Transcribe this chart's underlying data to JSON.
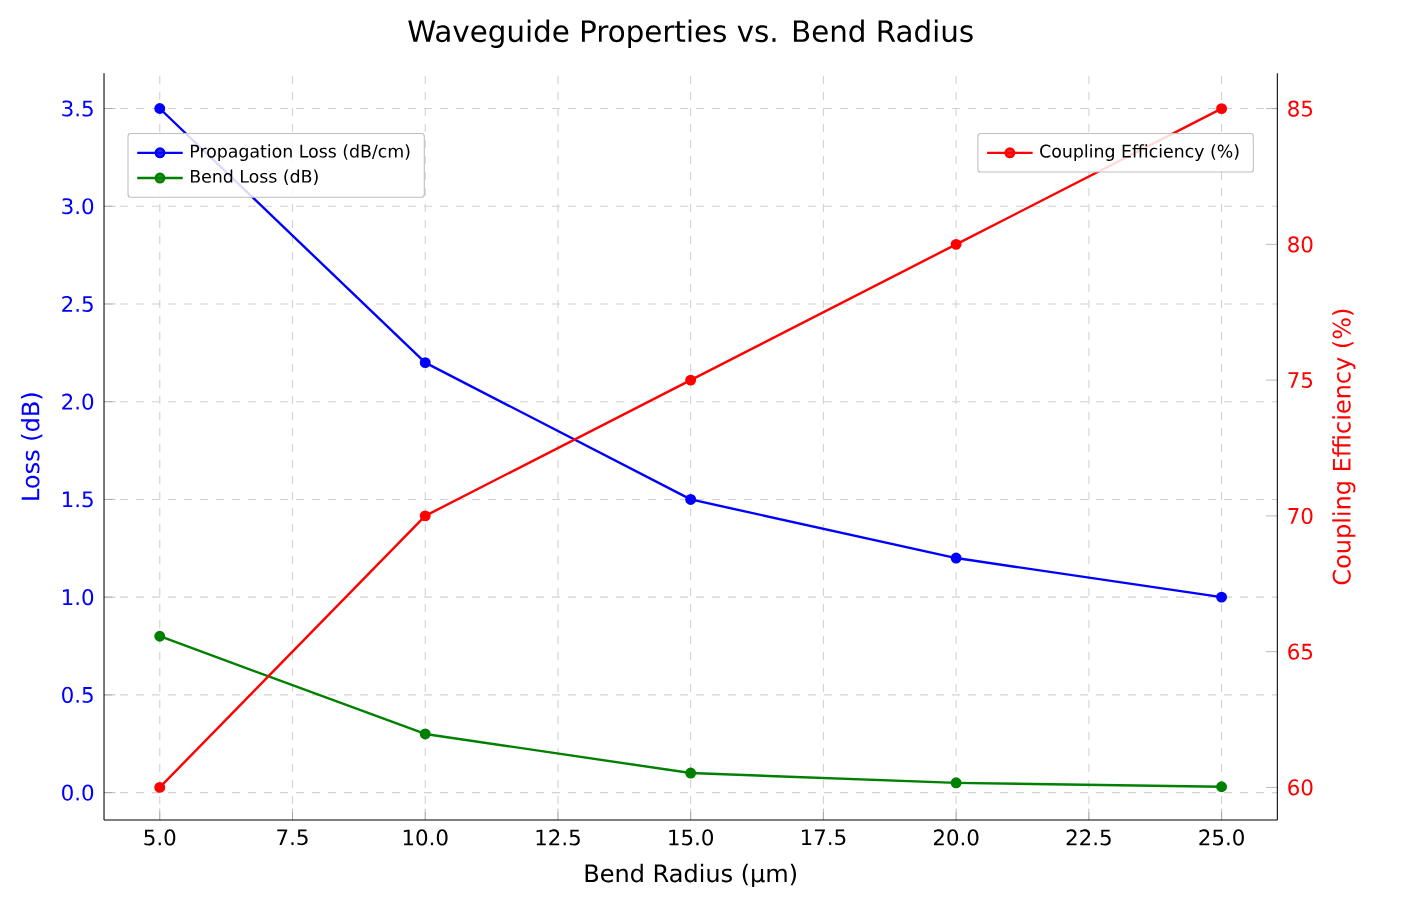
{
  "chart_data": {
    "type": "line",
    "title": "Waveguide Properties vs. Bend Radius",
    "xlabel": "Bend Radius (µm)",
    "ylabel": "Loss (dB)",
    "y2label": "Coupling Efficiency (%)",
    "x": [
      5,
      10,
      15,
      20,
      25
    ],
    "series": [
      {
        "name": "Propagation Loss (dB/cm)",
        "color": "#0000ff",
        "values": [
          3.5,
          2.2,
          1.5,
          1.2,
          1.0
        ]
      },
      {
        "name": "Bend Loss (dB)",
        "color": "#008000",
        "values": [
          0.8,
          0.3,
          0.1,
          0.05,
          0.03
        ]
      },
      {
        "name": "Coupling Efficiency (%)",
        "color": "#ff0000",
        "values": [
          60,
          70,
          75,
          80,
          85
        ],
        "axis": "y2"
      }
    ],
    "xlim": [
      3.95,
      26.05
    ],
    "xticks": [
      {
        "value": 5,
        "label": "5.0"
      },
      {
        "value": 7.5,
        "label": "7.5"
      },
      {
        "value": 10,
        "label": "10.0"
      },
      {
        "value": 12.5,
        "label": "12.5"
      },
      {
        "value": 15,
        "label": "15.0"
      },
      {
        "value": 17.5,
        "label": "17.5"
      },
      {
        "value": 20,
        "label": "20.0"
      },
      {
        "value": 22.5,
        "label": "22.5"
      },
      {
        "value": 25,
        "label": "25.0"
      }
    ],
    "ylim": [
      -0.14,
      3.68
    ],
    "yticks": [
      {
        "value": 0,
        "label": "0.0"
      },
      {
        "value": 0.5,
        "label": "0.5"
      },
      {
        "value": 1,
        "label": "1.0"
      },
      {
        "value": 1.5,
        "label": "1.5"
      },
      {
        "value": 2,
        "label": "2.0"
      },
      {
        "value": 2.5,
        "label": "2.5"
      },
      {
        "value": 3,
        "label": "3.0"
      },
      {
        "value": 3.5,
        "label": "3.5"
      }
    ],
    "y2lim": [
      58.8,
      86.3
    ],
    "y2ticks": [
      60,
      65,
      70,
      75,
      80,
      85
    ],
    "grid": true,
    "legend": "top left",
    "marker": "circle",
    "line_style": "solid"
  }
}
